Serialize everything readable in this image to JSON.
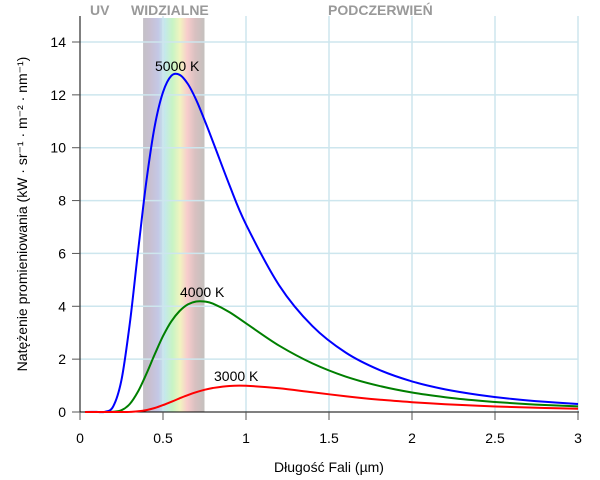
{
  "chart_data": {
    "type": "line",
    "title": "",
    "xlabel": "Długość Fali (µm)",
    "ylabel": "Natężenie promieniowania (kW · sr⁻¹ · m⁻² · nm⁻¹)",
    "xlim": [
      0,
      3
    ],
    "ylim": [
      0,
      14
    ],
    "xticks": [
      0,
      0.5,
      1,
      1.5,
      2,
      2.5,
      3
    ],
    "xtick_labels": [
      "0",
      "0.5",
      "1",
      "1.5",
      "2",
      "2.5",
      "3"
    ],
    "yticks": [
      0,
      2,
      4,
      6,
      8,
      10,
      12,
      14
    ],
    "ytick_labels": [
      "0",
      "2",
      "4",
      "6",
      "8",
      "10",
      "12",
      "14"
    ],
    "grid": true,
    "regions": [
      {
        "name": "UV",
        "label": "UV"
      },
      {
        "name": "visible",
        "label": "WIDZIALNE",
        "range": [
          0.38,
          0.75
        ]
      },
      {
        "name": "infrared",
        "label": "PODCZERWIEŃ"
      }
    ],
    "x": [
      0.03,
      0.1,
      0.15,
      0.2,
      0.25,
      0.3,
      0.35,
      0.4,
      0.45,
      0.5,
      0.55,
      0.6,
      0.65,
      0.7,
      0.75,
      0.8,
      0.9,
      1.0,
      1.2,
      1.4,
      1.6,
      1.8,
      2.0,
      2.2,
      2.4,
      2.6,
      2.8,
      3.0
    ],
    "series": [
      {
        "name": "5000 K",
        "label": "5000 K",
        "color": "#0000ff",
        "values": [
          0,
          0.004,
          0.0073,
          0.21,
          1.22,
          3.35,
          6.1,
          8.74,
          10.81,
          12.1,
          12.72,
          12.76,
          12.41,
          11.81,
          11.05,
          10.24,
          8.59,
          7.1,
          4.79,
          3.25,
          2.25,
          1.6,
          1.157,
          0.856,
          0.646,
          0.495,
          0.386,
          0.304
        ]
      },
      {
        "name": "4000 K",
        "label": "4000 K",
        "color": "#007f00",
        "values": [
          0,
          0,
          0,
          0.0057,
          0.069,
          0.304,
          0.78,
          1.445,
          2.18,
          2.87,
          3.43,
          3.82,
          4.07,
          4.18,
          4.18,
          4.1,
          3.78,
          3.355,
          2.51,
          1.84,
          1.34,
          0.99,
          0.738,
          0.56,
          0.43,
          0.335,
          0.265,
          0.2115
        ]
      },
      {
        "name": "3000 K",
        "label": "3000 K",
        "color": "#ff0000",
        "values": [
          0,
          0,
          0,
          0,
          0,
          0.0056,
          0.0255,
          0.072,
          0.152,
          0.26,
          0.386,
          0.517,
          0.641,
          0.75,
          0.841,
          0.907,
          0.984,
          0.9925,
          0.896,
          0.745,
          0.596,
          0.469,
          0.372,
          0.296,
          0.2346,
          0.188,
          0.1525,
          0.124
        ]
      }
    ],
    "colors": {
      "grid": "#cde6ee",
      "axis": "#000000",
      "region_label": "#999999"
    }
  }
}
